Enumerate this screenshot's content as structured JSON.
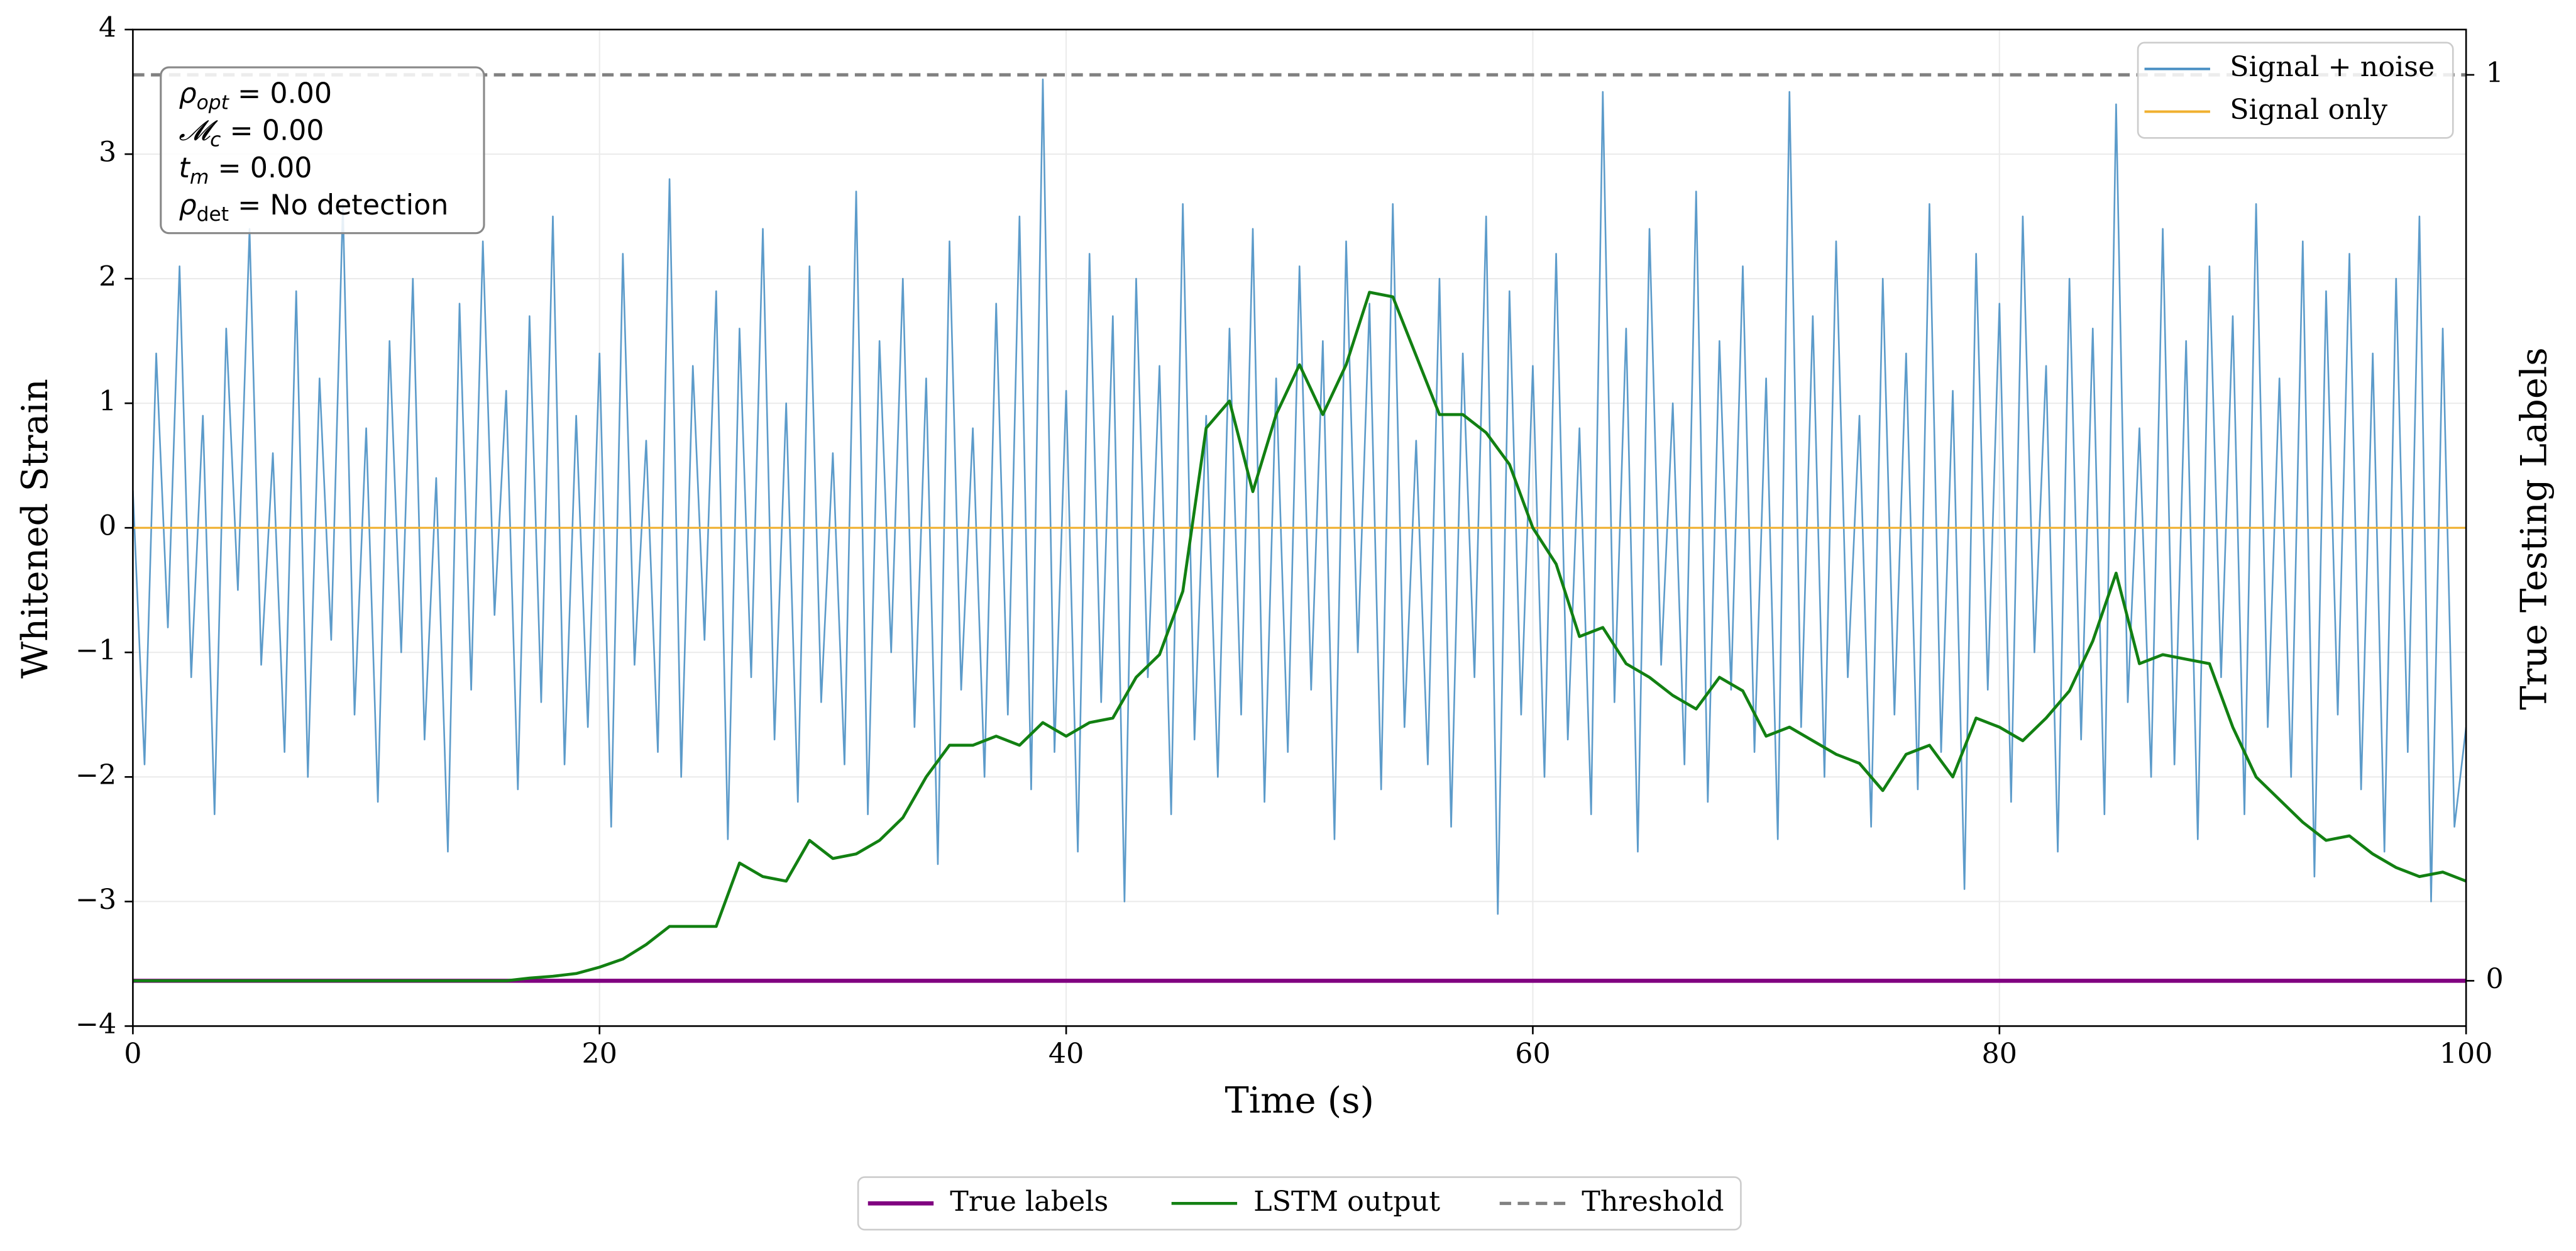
{
  "chart_data": {
    "type": "line",
    "xlabel": "Time (s)",
    "ylabel": "Whitened Strain",
    "y2label": "True Testing Labels",
    "xlim": [
      0,
      100
    ],
    "xticks": [
      0,
      20,
      40,
      60,
      80,
      100
    ],
    "ylim": [
      -4,
      4
    ],
    "yticks": [
      {
        "value": -4,
        "label": "−4"
      },
      {
        "value": -3,
        "label": "−3"
      },
      {
        "value": -2,
        "label": "−2"
      },
      {
        "value": -1,
        "label": "−1"
      },
      0,
      1,
      2,
      3,
      4
    ],
    "y2lim": [
      -0.05,
      1.05
    ],
    "y2ticks": [
      0,
      1
    ],
    "grid": true,
    "annotations": [
      {
        "symbol": "ρ",
        "sub": "opt",
        "text": " = 0.00"
      },
      {
        "symbol": "𝓜",
        "sub": "c",
        "text": " = 0.00"
      },
      {
        "symbol": "t",
        "sub": "m",
        "text": " = 0.00"
      },
      {
        "symbol": "ρ",
        "sub": "det",
        "text": " = No detection"
      }
    ],
    "series": [
      {
        "name": "Signal + noise",
        "color": "#4a90c4",
        "width": 1,
        "opacity": 0.9,
        "legend": "upper right",
        "x": [
          0,
          0.5,
          1,
          1.5,
          2,
          2.5,
          3,
          3.5,
          4,
          4.5,
          5,
          5.5,
          6,
          6.5,
          7,
          7.5,
          8,
          8.5,
          9,
          9.5,
          10,
          10.5,
          11,
          11.5,
          12,
          12.5,
          13,
          13.5,
          14,
          14.5,
          15,
          15.5,
          16,
          16.5,
          17,
          17.5,
          18,
          18.5,
          19,
          19.5,
          20,
          20.5,
          21,
          21.5,
          22,
          22.5,
          23,
          23.5,
          24,
          24.5,
          25,
          25.5,
          26,
          26.5,
          27,
          27.5,
          28,
          28.5,
          29,
          29.5,
          30,
          30.5,
          31,
          31.5,
          32,
          32.5,
          33,
          33.5,
          34,
          34.5,
          35,
          35.5,
          36,
          36.5,
          37,
          37.5,
          38,
          38.5,
          39,
          39.5,
          40,
          40.5,
          41,
          41.5,
          42,
          42.5,
          43,
          43.5,
          44,
          44.5,
          45,
          45.5,
          46,
          46.5,
          47,
          47.5,
          48,
          48.5,
          49,
          49.5,
          50,
          50.5,
          51,
          51.5,
          52,
          52.5,
          53,
          53.5,
          54,
          54.5,
          55,
          55.5,
          56,
          56.5,
          57,
          57.5,
          58,
          58.5,
          59,
          59.5,
          60,
          60.5,
          61,
          61.5,
          62,
          62.5,
          63,
          63.5,
          64,
          64.5,
          65,
          65.5,
          66,
          66.5,
          67,
          67.5,
          68,
          68.5,
          69,
          69.5,
          70,
          70.5,
          71,
          71.5,
          72,
          72.5,
          73,
          73.5,
          74,
          74.5,
          75,
          75.5,
          76,
          76.5,
          77,
          77.5,
          78,
          78.5,
          79,
          79.5,
          80,
          80.5,
          81,
          81.5,
          82,
          82.5,
          83,
          83.5,
          84,
          84.5,
          85,
          85.5,
          86,
          86.5,
          87,
          87.5,
          88,
          88.5,
          89,
          89.5,
          90,
          90.5,
          91,
          91.5,
          92,
          92.5,
          93,
          93.5,
          94,
          94.5,
          95,
          95.5,
          96,
          96.5,
          97,
          97.5,
          98,
          98.5,
          99,
          99.5,
          100
        ],
        "values": [
          0.3,
          -1.9,
          1.4,
          -0.8,
          2.1,
          -1.2,
          0.9,
          -2.3,
          1.6,
          -0.5,
          2.4,
          -1.1,
          0.6,
          -1.8,
          1.9,
          -2.0,
          1.2,
          -0.9,
          2.6,
          -1.5,
          0.8,
          -2.2,
          1.5,
          -1.0,
          2.0,
          -1.7,
          0.4,
          -2.6,
          1.8,
          -1.3,
          2.3,
          -0.7,
          1.1,
          -2.1,
          1.7,
          -1.4,
          2.5,
          -1.9,
          0.9,
          -1.6,
          1.4,
          -2.4,
          2.2,
          -1.1,
          0.7,
          -1.8,
          2.8,
          -2.0,
          1.3,
          -0.9,
          1.9,
          -2.5,
          1.6,
          -1.2,
          2.4,
          -1.7,
          1.0,
          -2.2,
          2.1,
          -1.4,
          0.6,
          -1.9,
          2.7,
          -2.3,
          1.5,
          -1.0,
          2.0,
          -1.6,
          1.2,
          -2.7,
          2.3,
          -1.3,
          0.8,
          -2.0,
          1.8,
          -1.5,
          2.5,
          -2.1,
          3.6,
          -1.8,
          1.1,
          -2.6,
          2.2,
          -1.4,
          1.7,
          -3.0,
          2.0,
          -1.2,
          1.3,
          -2.3,
          2.6,
          -1.7,
          0.9,
          -2.0,
          1.6,
          -1.5,
          2.4,
          -2.2,
          1.2,
          -1.8,
          2.1,
          -1.3,
          1.5,
          -2.5,
          2.3,
          -1.0,
          1.8,
          -2.1,
          2.6,
          -1.6,
          0.7,
          -1.9,
          2.0,
          -2.4,
          1.4,
          -1.2,
          2.5,
          -3.1,
          1.9,
          -1.5,
          1.3,
          -2.0,
          2.2,
          -1.7,
          0.8,
          -2.3,
          3.5,
          -1.4,
          1.6,
          -2.6,
          2.4,
          -1.1,
          1.0,
          -1.9,
          2.7,
          -2.2,
          1.5,
          -1.3,
          2.1,
          -1.8,
          1.2,
          -2.5,
          3.5,
          -1.6,
          1.7,
          -2.0,
          2.3,
          -1.2,
          0.9,
          -2.4,
          2.0,
          -1.5,
          1.4,
          -2.1,
          2.6,
          -1.8,
          1.1,
          -2.9,
          2.2,
          -1.3,
          1.8,
          -2.2,
          2.5,
          -1.0,
          1.3,
          -2.6,
          2.0,
          -1.7,
          1.6,
          -2.3,
          3.4,
          -1.4,
          0.8,
          -2.0,
          2.4,
          -1.9,
          1.5,
          -2.5,
          2.1,
          -1.2,
          1.7,
          -2.3,
          2.6,
          -1.6,
          1.2,
          -2.0,
          2.3,
          -2.8,
          1.9,
          -1.5,
          2.2,
          -2.1,
          1.4,
          -2.6,
          2.0,
          -1.8,
          2.5,
          -3.0,
          1.6,
          -2.4,
          -1.6
        ]
      },
      {
        "name": "Signal only",
        "color": "#f0b030",
        "width": 1.2,
        "legend": "upper right",
        "x": [
          0,
          100
        ],
        "values": [
          0,
          0
        ]
      },
      {
        "name": "True labels",
        "color": "#800080",
        "width": 2.5,
        "legend": "lower center",
        "axis": "y2",
        "x": [
          0,
          100
        ],
        "values": [
          0,
          0
        ]
      },
      {
        "name": "LSTM output",
        "color": "#128012",
        "width": 1.8,
        "legend": "lower center",
        "axis": "y2",
        "x": [
          0,
          1,
          2,
          3,
          4,
          5,
          6,
          7,
          8,
          9,
          10,
          11,
          12,
          13,
          14,
          15,
          16,
          17,
          18,
          19,
          20,
          21,
          22,
          23,
          24,
          25,
          26,
          27,
          28,
          29,
          30,
          31,
          32,
          33,
          34,
          35,
          36,
          37,
          38,
          39,
          40,
          41,
          42,
          43,
          44,
          45,
          46,
          47,
          48,
          49,
          50,
          51,
          52,
          53,
          54,
          55,
          56,
          57,
          58,
          59,
          60,
          61,
          62,
          63,
          64,
          65,
          66,
          67,
          68,
          69,
          70,
          71,
          72,
          73,
          74,
          75,
          76,
          77,
          78,
          79,
          80,
          81,
          82,
          83,
          84,
          85,
          86,
          87,
          88,
          89,
          90,
          91,
          92,
          93,
          94,
          95,
          96,
          97,
          98,
          99,
          100
        ],
        "values": [
          0,
          0,
          0,
          0,
          0,
          0,
          0,
          0,
          0,
          0,
          0,
          0,
          0,
          0,
          0,
          0,
          0,
          0.003,
          0.005,
          0.008,
          0.015,
          0.024,
          0.04,
          0.06,
          0.06,
          0.06,
          0.13,
          0.115,
          0.11,
          0.155,
          0.135,
          0.14,
          0.155,
          0.18,
          0.225,
          0.26,
          0.26,
          0.27,
          0.26,
          0.285,
          0.27,
          0.285,
          0.29,
          0.335,
          0.36,
          0.43,
          0.61,
          0.64,
          0.54,
          0.625,
          0.68,
          0.625,
          0.68,
          0.76,
          0.755,
          0.69,
          0.625,
          0.625,
          0.605,
          0.57,
          0.5,
          0.46,
          0.38,
          0.39,
          0.35,
          0.335,
          0.315,
          0.3,
          0.335,
          0.32,
          0.27,
          0.28,
          0.265,
          0.25,
          0.24,
          0.21,
          0.25,
          0.26,
          0.225,
          0.29,
          0.28,
          0.265,
          0.29,
          0.32,
          0.375,
          0.45,
          0.35,
          0.36,
          0.355,
          0.35,
          0.28,
          0.225,
          0.2,
          0.175,
          0.155,
          0.16,
          0.14,
          0.125,
          0.115,
          0.12,
          0.11
        ]
      },
      {
        "name": "Threshold",
        "color": "#808080",
        "width": 2,
        "dash": true,
        "legend": "lower center",
        "axis": "y2",
        "x": [
          0,
          100
        ],
        "values": [
          1,
          1
        ]
      }
    ]
  }
}
